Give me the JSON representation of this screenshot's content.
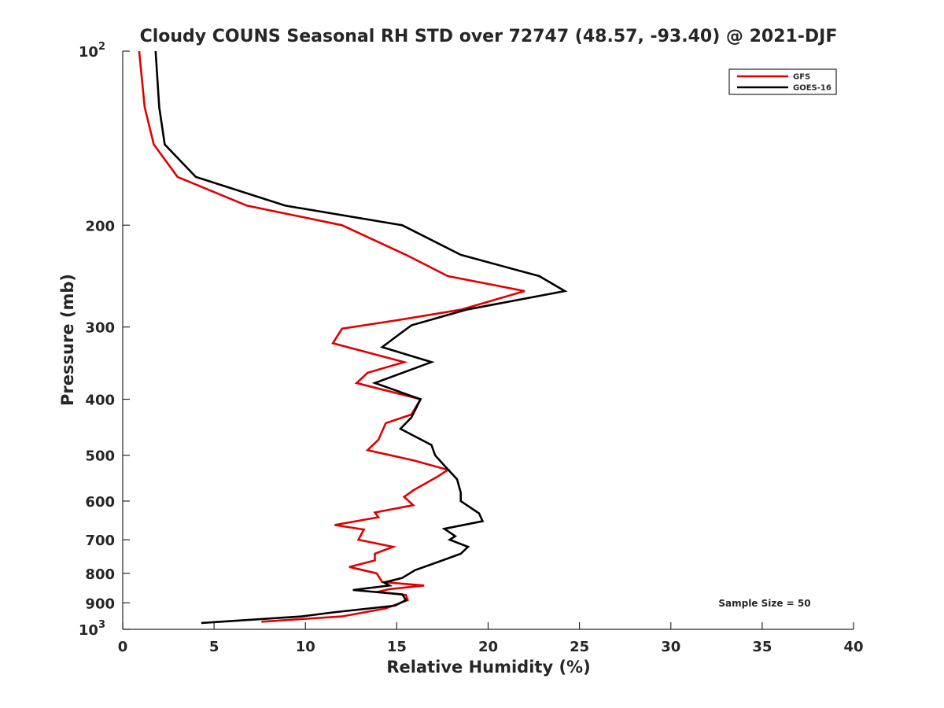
{
  "chart_data": {
    "type": "line",
    "title": "Cloudy COUNS Seasonal RH STD over 72747 (48.57, -93.40) @ 2021-DJF",
    "xlabel": "Relative Humidity (%)",
    "ylabel": "Pressure (mb)",
    "xlim": [
      0,
      40
    ],
    "ylim": [
      100,
      1000
    ],
    "yscale": "log",
    "y_reversed": true,
    "grid": false,
    "legend_position": "top-right",
    "x_ticks": [
      "0",
      "5",
      "10",
      "15",
      "20",
      "25",
      "30",
      "35",
      "40"
    ],
    "y_ticks": [
      {
        "value": 100,
        "base": "10",
        "exp": "2"
      },
      {
        "value": 200,
        "label": "200"
      },
      {
        "value": 300,
        "label": "300"
      },
      {
        "value": 400,
        "label": "400"
      },
      {
        "value": 500,
        "label": "500"
      },
      {
        "value": 600,
        "label": "600"
      },
      {
        "value": 700,
        "label": "700"
      },
      {
        "value": 800,
        "label": "800"
      },
      {
        "value": 900,
        "label": "900"
      },
      {
        "value": 1000,
        "base": "10",
        "exp": "3"
      }
    ],
    "annotation": "Sample Size = 50",
    "series": [
      {
        "name": "GFS",
        "color": "#e00000",
        "points": [
          [
            0.9,
            100
          ],
          [
            1.2,
            125
          ],
          [
            1.7,
            145
          ],
          [
            3.0,
            165
          ],
          [
            6.8,
            185
          ],
          [
            12.0,
            200
          ],
          [
            15.5,
            225
          ],
          [
            17.8,
            245
          ],
          [
            22.0,
            260
          ],
          [
            18.5,
            280
          ],
          [
            15.0,
            292
          ],
          [
            12.0,
            302
          ],
          [
            11.5,
            320
          ],
          [
            15.4,
            345
          ],
          [
            13.4,
            360
          ],
          [
            12.8,
            375
          ],
          [
            16.3,
            400
          ],
          [
            15.8,
            425
          ],
          [
            14.4,
            440
          ],
          [
            14.0,
            470
          ],
          [
            13.4,
            490
          ],
          [
            15.9,
            510
          ],
          [
            17.8,
            530
          ],
          [
            17.2,
            545
          ],
          [
            15.9,
            575
          ],
          [
            15.4,
            590
          ],
          [
            15.9,
            610
          ],
          [
            13.8,
            628
          ],
          [
            14.0,
            640
          ],
          [
            11.6,
            660
          ],
          [
            13.2,
            672
          ],
          [
            12.9,
            700
          ],
          [
            14.8,
            720
          ],
          [
            13.8,
            740
          ],
          [
            13.8,
            760
          ],
          [
            12.4,
            780
          ],
          [
            13.9,
            800
          ],
          [
            14.2,
            828
          ],
          [
            16.5,
            840
          ],
          [
            14.6,
            852
          ],
          [
            13.9,
            862
          ],
          [
            15.5,
            872
          ],
          [
            15.6,
            890
          ],
          [
            14.4,
            920
          ],
          [
            12.0,
            950
          ],
          [
            7.6,
            970
          ]
        ]
      },
      {
        "name": "GOES-16",
        "color": "#000000",
        "points": [
          [
            1.8,
            100
          ],
          [
            2.0,
            125
          ],
          [
            2.3,
            145
          ],
          [
            4.0,
            165
          ],
          [
            8.9,
            185
          ],
          [
            15.3,
            200
          ],
          [
            18.5,
            225
          ],
          [
            22.8,
            245
          ],
          [
            24.2,
            260
          ],
          [
            18.8,
            280
          ],
          [
            15.8,
            298
          ],
          [
            14.2,
            325
          ],
          [
            16.9,
            345
          ],
          [
            13.8,
            375
          ],
          [
            16.3,
            400
          ],
          [
            15.8,
            430
          ],
          [
            15.2,
            450
          ],
          [
            16.9,
            480
          ],
          [
            17.1,
            500
          ],
          [
            17.7,
            525
          ],
          [
            18.3,
            550
          ],
          [
            18.5,
            580
          ],
          [
            18.5,
            600
          ],
          [
            19.5,
            630
          ],
          [
            19.7,
            650
          ],
          [
            17.6,
            670
          ],
          [
            18.2,
            690
          ],
          [
            17.9,
            700
          ],
          [
            18.9,
            720
          ],
          [
            18.5,
            740
          ],
          [
            17.5,
            760
          ],
          [
            16.0,
            790
          ],
          [
            15.3,
            815
          ],
          [
            14.3,
            830
          ],
          [
            14.6,
            840
          ],
          [
            12.6,
            855
          ],
          [
            15.3,
            870
          ],
          [
            15.5,
            890
          ],
          [
            14.9,
            910
          ],
          [
            11.5,
            935
          ],
          [
            9.8,
            950
          ],
          [
            4.3,
            975
          ]
        ]
      }
    ]
  }
}
